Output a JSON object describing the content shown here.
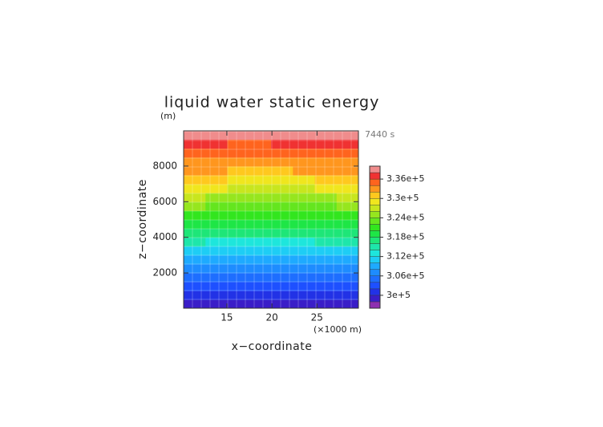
{
  "chart_data": {
    "type": "heatmap",
    "title": "liquid water static energy",
    "y_unit": "(m)",
    "time_label": "7440 s",
    "x_unit": "(×1000 m)",
    "x_label": "x−coordinate",
    "y_label": "z−coordinate",
    "xlim": [
      10.2,
      29.6
    ],
    "ylim": [
      20,
      9980
    ],
    "xticks": [
      15,
      20,
      25
    ],
    "yticks": [
      2000,
      4000,
      6000,
      8000
    ],
    "x": [
      11.41,
      13.84,
      16.26,
      18.69,
      21.11,
      23.54,
      25.96,
      28.39
    ],
    "y": [
      250,
      750,
      1250,
      1750,
      2250,
      2750,
      3250,
      3750,
      4250,
      4750,
      5250,
      5750,
      6250,
      6750,
      7250,
      7750,
      8250,
      8750,
      9250,
      9750
    ],
    "values": [
      [
        298800,
        299000,
        299200,
        299000,
        299000,
        299200,
        299000,
        298800
      ],
      [
        301000,
        301200,
        301000,
        301000,
        301200,
        301000,
        301000,
        301200
      ],
      [
        303400,
        303600,
        303400,
        303600,
        303400,
        303600,
        303400,
        303400
      ],
      [
        305600,
        305400,
        305400,
        305200,
        305200,
        305400,
        305600,
        305600
      ],
      [
        307600,
        307400,
        307200,
        307200,
        307200,
        307400,
        307600,
        307800
      ],
      [
        309600,
        309400,
        309200,
        309400,
        309400,
        309200,
        309600,
        309800
      ],
      [
        311800,
        311400,
        311400,
        311200,
        311200,
        311400,
        311600,
        311800
      ],
      [
        314200,
        313800,
        313600,
        313600,
        313800,
        313800,
        314000,
        314400
      ],
      [
        316600,
        316400,
        316200,
        316000,
        316200,
        316400,
        316600,
        316800
      ],
      [
        318800,
        318400,
        318200,
        318200,
        318400,
        318400,
        318600,
        319000
      ],
      [
        321400,
        321000,
        320600,
        320400,
        320400,
        320800,
        321200,
        321600
      ],
      [
        324000,
        323400,
        323000,
        322800,
        322800,
        323200,
        323600,
        324200
      ],
      [
        326200,
        325600,
        325000,
        324800,
        324800,
        325200,
        325800,
        326400
      ],
      [
        328600,
        328000,
        327400,
        327200,
        327200,
        327600,
        328200,
        328800
      ],
      [
        330400,
        330000,
        329600,
        329400,
        329400,
        329800,
        330200,
        330600
      ],
      [
        332200,
        332000,
        331600,
        331600,
        331800,
        332000,
        332200,
        332400
      ],
      [
        333400,
        333200,
        333000,
        333000,
        333200,
        333200,
        333400,
        333600
      ],
      [
        334800,
        334600,
        334400,
        334400,
        334600,
        334600,
        334800,
        335000
      ],
      [
        336200,
        336000,
        335800,
        335800,
        336000,
        336000,
        336200,
        336400
      ],
      [
        338200,
        338400,
        338400,
        338600,
        338400,
        338200,
        338400,
        338200
      ]
    ],
    "levels": [
      296000,
      298000,
      300000,
      302000,
      304000,
      306000,
      308000,
      310000,
      312000,
      314000,
      316000,
      318000,
      320000,
      322000,
      324000,
      326000,
      328000,
      330000,
      332000,
      334000,
      336000,
      338000,
      340000
    ],
    "colors": [
      "#8e2fb0",
      "#3a1ec8",
      "#2232e6",
      "#1e50ff",
      "#1e6eff",
      "#1e8cff",
      "#1eaaff",
      "#1ecdf5",
      "#1ee6dc",
      "#1ee6aa",
      "#1ee678",
      "#1ee646",
      "#32e61e",
      "#64e61e",
      "#96e61e",
      "#c8e61e",
      "#f0e61e",
      "#ffc81e",
      "#ff961e",
      "#ff641e",
      "#f03232",
      "#f08c8c"
    ],
    "colorbar_lim": [
      296000,
      340000
    ],
    "colorbar_ticks": [
      {
        "value": 300000,
        "label": "3e+5"
      },
      {
        "value": 306000,
        "label": "3.06e+5"
      },
      {
        "value": 312000,
        "label": "3.12e+5"
      },
      {
        "value": 318000,
        "label": "3.18e+5"
      },
      {
        "value": 324000,
        "label": "3.24e+5"
      },
      {
        "value": 330000,
        "label": "3.3e+5"
      },
      {
        "value": 336000,
        "label": "3.36e+5"
      }
    ]
  }
}
